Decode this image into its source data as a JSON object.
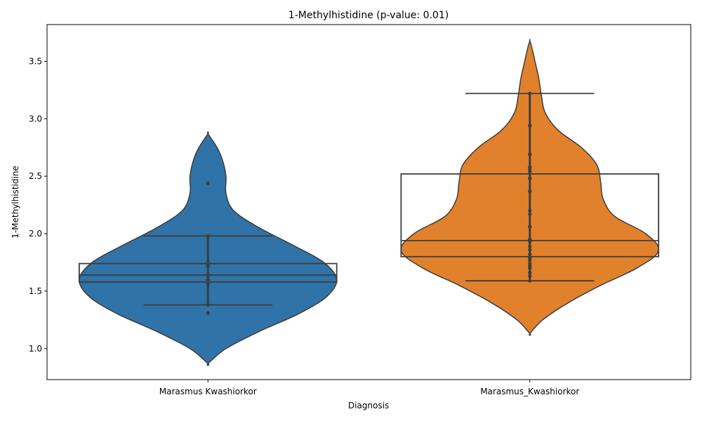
{
  "chart_data": {
    "type": "violin",
    "title": "1-Methylhistidine (p-value: 0.01)",
    "xlabel": "Diagnosis",
    "ylabel": "1-Methylhistidine",
    "ylim": [
      0.73,
      3.82
    ],
    "yticks": [
      "1.0",
      "1.5",
      "2.0",
      "2.5",
      "3.0",
      "3.5"
    ],
    "grid": false,
    "categories": [
      "Marasmus Kwashiorkor",
      "Marasmus_Kwashiorkor"
    ],
    "series": [
      {
        "color": "#2f73a8",
        "box": {
          "q1": 1.58,
          "median": 1.64,
          "q3": 1.74,
          "whisker_low": 1.38,
          "whisker_high": 1.98
        },
        "points": [
          2.44,
          1.98,
          1.74,
          1.72,
          1.64,
          1.6,
          1.57,
          1.38,
          1.31
        ],
        "violin": [
          [
            0.87,
            0.0
          ],
          [
            1.0,
            0.14
          ],
          [
            1.15,
            0.4
          ],
          [
            1.3,
            0.7
          ],
          [
            1.45,
            0.92
          ],
          [
            1.6,
            1.0
          ],
          [
            1.75,
            0.9
          ],
          [
            1.9,
            0.66
          ],
          [
            2.05,
            0.4
          ],
          [
            2.2,
            0.2
          ],
          [
            2.35,
            0.14
          ],
          [
            2.5,
            0.14
          ],
          [
            2.65,
            0.11
          ],
          [
            2.75,
            0.07
          ],
          [
            2.87,
            0.0
          ]
        ]
      },
      {
        "color": "#e1812c",
        "box": {
          "q1": 1.8,
          "median": 1.94,
          "q3": 2.52,
          "whisker_low": 1.59,
          "whisker_high": 3.22
        },
        "points": [
          3.22,
          2.94,
          2.69,
          2.58,
          2.56,
          2.54,
          2.48,
          2.37,
          2.2,
          2.17,
          2.06,
          1.95,
          1.93,
          1.89,
          1.86,
          1.82,
          1.79,
          1.77,
          1.74,
          1.72,
          1.7,
          1.66,
          1.63,
          1.59
        ],
        "violin": [
          [
            1.13,
            0.0
          ],
          [
            1.25,
            0.1
          ],
          [
            1.4,
            0.3
          ],
          [
            1.55,
            0.55
          ],
          [
            1.7,
            0.83
          ],
          [
            1.85,
            1.0
          ],
          [
            2.0,
            0.9
          ],
          [
            2.15,
            0.66
          ],
          [
            2.3,
            0.57
          ],
          [
            2.45,
            0.55
          ],
          [
            2.6,
            0.52
          ],
          [
            2.75,
            0.4
          ],
          [
            2.9,
            0.22
          ],
          [
            3.05,
            0.12
          ],
          [
            3.2,
            0.09
          ],
          [
            3.35,
            0.07
          ],
          [
            3.5,
            0.04
          ],
          [
            3.6,
            0.02
          ],
          [
            3.68,
            0.0
          ]
        ]
      }
    ]
  }
}
